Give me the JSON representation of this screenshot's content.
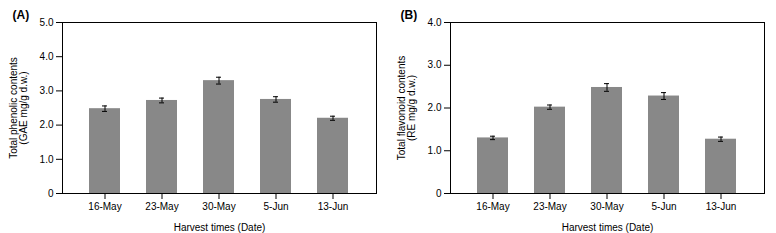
{
  "chart_data": [
    {
      "type": "bar",
      "title": "(A)",
      "categories": [
        "16-May",
        "23-May",
        "30-May",
        "5-Jun",
        "13-Jun"
      ],
      "values": [
        2.48,
        2.72,
        3.3,
        2.75,
        2.2
      ],
      "errors": [
        0.08,
        0.07,
        0.1,
        0.08,
        0.06
      ],
      "color": "#888888",
      "xlabel": "Harvest times (Date)",
      "ylabel": "Total phenolic contents\n(GAE mg/g d.w.)",
      "ylim": [
        0,
        5.0
      ],
      "yticks": [
        0,
        {
          "value": 1.0,
          "label": "1.0"
        },
        {
          "value": 2.0,
          "label": "2.0"
        },
        {
          "value": 3.0,
          "label": "3.0"
        },
        {
          "value": 4.0,
          "label": "4.0"
        },
        {
          "value": 5.0,
          "label": "5.0"
        }
      ],
      "grid": false
    },
    {
      "type": "bar",
      "title": "(B)",
      "categories": [
        "16-May",
        "23-May",
        "30-May",
        "5-Jun",
        "13-Jun"
      ],
      "values": [
        1.3,
        2.02,
        2.48,
        2.28,
        1.27
      ],
      "errors": [
        0.04,
        0.05,
        0.09,
        0.08,
        0.05
      ],
      "color": "#888888",
      "xlabel": "Harvest times (Date)",
      "ylabel": "Total flavonoid contents\n(RE mg/g d.w.)",
      "ylim": [
        0,
        4.0
      ],
      "yticks": [
        0,
        {
          "value": 1.0,
          "label": "1.0"
        },
        {
          "value": 2.0,
          "label": "2.0"
        },
        {
          "value": 3.0,
          "label": "3.0"
        },
        {
          "value": 4.0,
          "label": "4.0"
        }
      ],
      "grid": false
    }
  ]
}
